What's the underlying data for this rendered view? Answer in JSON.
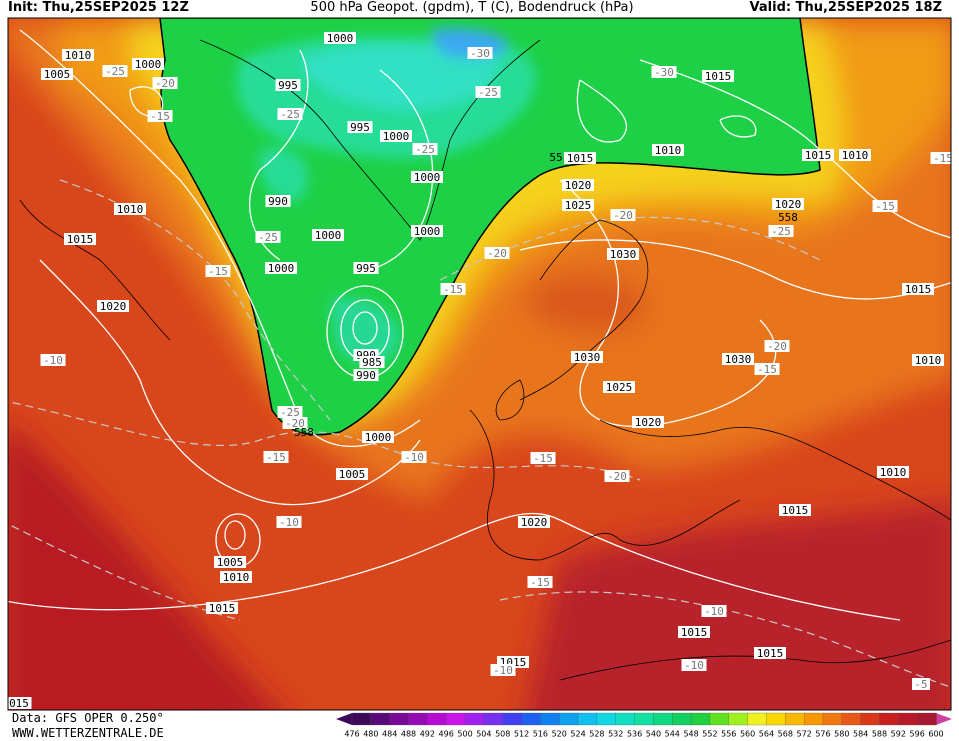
{
  "header": {
    "init": "Init: Thu,25SEP2025 12Z",
    "title": "500 hPa Geopot. (gpdm), T (C), Bodendruck (hPa)",
    "valid": "Valid: Thu,25SEP2025 18Z"
  },
  "footer": {
    "source": "Data: GFS OPER 0.250°",
    "site": "WWW.WETTERZENTRALE.DE"
  },
  "map": {
    "isobar_labels": [
      1010,
      1005,
      1000,
      1000,
      995,
      995,
      1000,
      1015,
      1015,
      1010,
      1015,
      1010,
      990,
      1000,
      1000,
      1000,
      1000,
      995,
      990,
      985,
      990,
      1010,
      1015,
      1020,
      1020,
      1025,
      1030,
      1030,
      1030,
      1025,
      1020,
      1000,
      1005,
      1020,
      1005,
      1010,
      1015,
      1015,
      1015,
      1015,
      1015,
      1010,
      1010,
      1015,
      1020
    ],
    "temperature_labels": [
      -25,
      -20,
      -15,
      -30,
      -25,
      -25,
      -25,
      -30,
      -20,
      -25,
      -20,
      -15,
      -25,
      -15,
      -10,
      -25,
      -20,
      -15,
      -10,
      -15,
      -20,
      -10,
      -15,
      -10,
      -10,
      -10,
      -20,
      -15,
      -15,
      -15,
      -5
    ],
    "height_labels": [
      558,
      558,
      55
    ],
    "edge_label": "015",
    "color_scale": {
      "ticks": [
        476,
        480,
        484,
        488,
        492,
        496,
        500,
        504,
        508,
        512,
        516,
        520,
        524,
        528,
        532,
        536,
        540,
        544,
        548,
        552,
        556,
        560,
        564,
        568,
        572,
        576,
        580,
        584,
        588,
        592,
        596,
        600
      ],
      "colors": [
        "#3d0a5a",
        "#5a0a78",
        "#780a96",
        "#960ab4",
        "#b40ad2",
        "#c814e6",
        "#a020f0",
        "#7830f0",
        "#4040f0",
        "#2060f0",
        "#1080f0",
        "#10a0f0",
        "#10c0f0",
        "#10d8e0",
        "#10e0c0",
        "#10e0a0",
        "#10d880",
        "#10d060",
        "#20d040",
        "#60e020",
        "#a0f020",
        "#f0f020",
        "#f8d800",
        "#f8b800",
        "#f89800",
        "#f07810",
        "#e85818",
        "#d83818",
        "#c82020",
        "#b81828",
        "#a81830"
      ]
    }
  }
}
